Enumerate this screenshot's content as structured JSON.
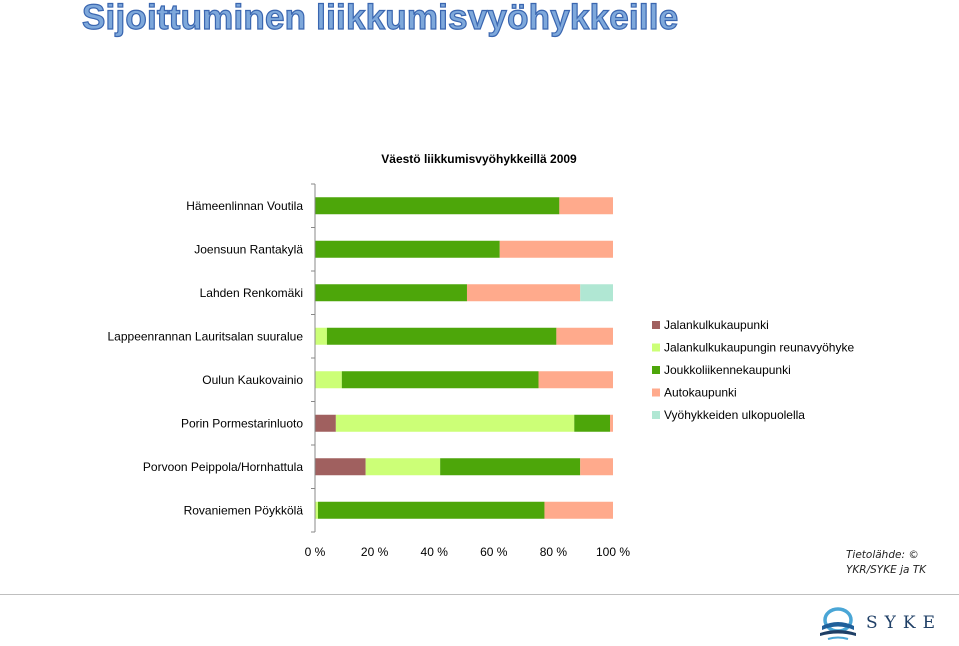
{
  "slide": {
    "title": "Sijoittuminen liikkumisvyöhykkeille",
    "source_lines": [
      "Tietolähde: ©",
      "YKR/SYKE ja TK"
    ],
    "logo_text": "SYKE"
  },
  "chart_data": {
    "type": "bar",
    "orientation": "horizontal",
    "stacked": "percent",
    "title": "Väestö liikkumisvyöhykkeillä 2009",
    "categories": [
      "Hämeenlinnan Voutila",
      "Joensuun Rantakylä",
      "Lahden Renkomäki",
      "Lappeenrannan Lauritsalan suuralue",
      "Oulun Kaukovainio",
      "Porin Pormestarinluoto",
      "Porvoon Peippola/Hornhattula",
      "Rovaniemen Pöykkölä"
    ],
    "series": [
      {
        "name": "Jalankulkukaupunki",
        "color": "#a0605f",
        "values": [
          0,
          0,
          0,
          0,
          0,
          7,
          17,
          0
        ]
      },
      {
        "name": "Jalankulkukaupungin reunavyöhyke",
        "color": "#ccff77",
        "values": [
          0,
          0,
          0,
          4,
          9,
          80,
          25,
          1
        ]
      },
      {
        "name": "Joukkoliikennekaupunki",
        "color": "#4da60a",
        "values": [
          82,
          62,
          51,
          77,
          66,
          12,
          47,
          76
        ]
      },
      {
        "name": "Autokaupunki",
        "color": "#ffaa8c",
        "values": [
          18,
          38,
          38,
          19,
          25,
          1,
          11,
          23
        ]
      },
      {
        "name": "Vyöhykkeiden ulkopuolella",
        "color": "#b0e7d3",
        "values": [
          0,
          0,
          11,
          0,
          0,
          0,
          0,
          0
        ]
      }
    ],
    "x_ticks": [
      "0 %",
      "20 %",
      "40 %",
      "60 %",
      "80 %",
      "100 %"
    ],
    "xlim": [
      0,
      100
    ],
    "grid": false,
    "legend_position": "right"
  }
}
